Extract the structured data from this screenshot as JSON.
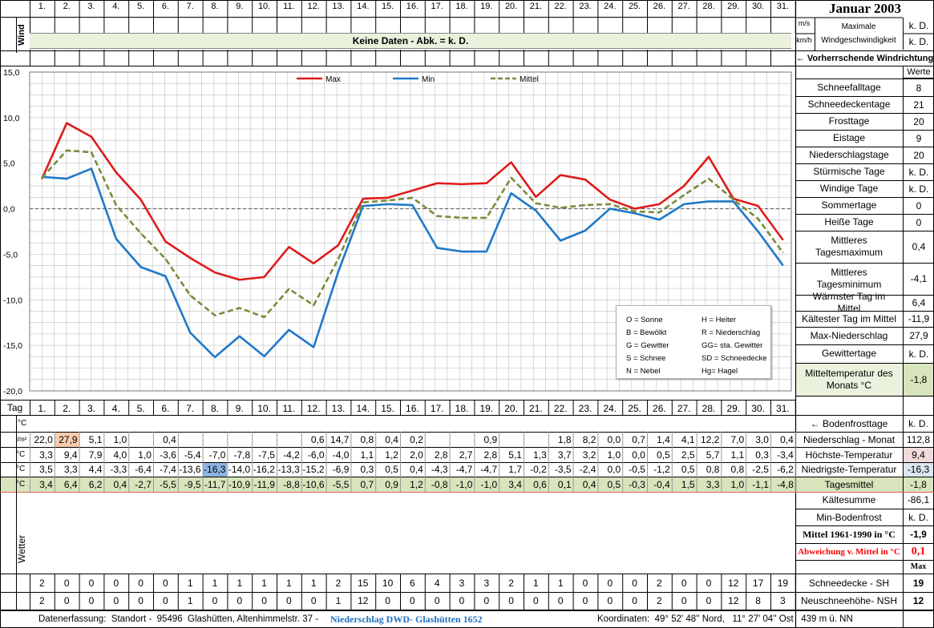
{
  "title": "Januar 2003",
  "days": [
    "1.",
    "2.",
    "3.",
    "4.",
    "5.",
    "6.",
    "7.",
    "8.",
    "9.",
    "10.",
    "11.",
    "12.",
    "13.",
    "14.",
    "15.",
    "16.",
    "17.",
    "18.",
    "19.",
    "20.",
    "21.",
    "22.",
    "23.",
    "24.",
    "25.",
    "26.",
    "27.",
    "28.",
    "29.",
    "30.",
    "31."
  ],
  "wind": {
    "label": "Wind",
    "no_data": "Keine Daten - Abk. = k. D.",
    "unit_ms": "m/s",
    "unit_kmh": "km/h",
    "max_label": "Maximale Windgeschwindigkeit",
    "value1": "k. D.",
    "value2": "k. D.",
    "direction_label": "← Vorherrschende Windrichtung"
  },
  "werte_header": "Werte",
  "stats": [
    {
      "label": "Schneefalltage",
      "value": "8"
    },
    {
      "label": "Schneedeckentage",
      "value": "21"
    },
    {
      "label": "Frosttage",
      "value": "20"
    },
    {
      "label": "Eistage",
      "value": "9"
    },
    {
      "label": "Niederschlagstage",
      "value": "20"
    },
    {
      "label": "Stürmische Tage",
      "value": "k. D."
    },
    {
      "label": "Windige Tage",
      "value": "k. D."
    },
    {
      "label": "Sommertage",
      "value": "0"
    },
    {
      "label": "Heiße Tage",
      "value": "0"
    },
    {
      "label": "Mittleres Tagesmaximum",
      "value": "0,4"
    },
    {
      "label": "Mittleres Tagesminimum",
      "value": "-4,1"
    },
    {
      "label": "Wärmster Tag im Mittel",
      "value": "6,4"
    },
    {
      "label": "Kältester Tag im Mittel",
      "value": "-11,9"
    },
    {
      "label": "Max-Niederschlag",
      "value": "27,9"
    },
    {
      "label": "Gewittertage",
      "value": "k. D."
    },
    {
      "label": "Mitteltemperatur des Monats °C",
      "value": "-1,8"
    }
  ],
  "legend_box": {
    "left": [
      "O = Sonne",
      "B = Bewölkt",
      "G = Gewitter",
      "S = Schnee",
      "N = Nebel"
    ],
    "right": [
      "H = Heiter",
      "R = Niederschlag",
      "GG= sta. Gewitter",
      "SD = Schneedecke",
      "Hg= Hagel"
    ]
  },
  "chart_data": {
    "type": "line",
    "x": [
      1,
      2,
      3,
      4,
      5,
      6,
      7,
      8,
      9,
      10,
      11,
      12,
      13,
      14,
      15,
      16,
      17,
      18,
      19,
      20,
      21,
      22,
      23,
      24,
      25,
      26,
      27,
      28,
      29,
      30,
      31
    ],
    "ylim": [
      -20,
      15
    ],
    "yticks": [
      "15,0",
      "10,0",
      "5,0",
      "0,0",
      "-5,0",
      "-10,0",
      "-15,0",
      "-20,0"
    ],
    "grid": true,
    "legend_position": "top",
    "series": [
      {
        "name": "Max",
        "color": "#e01b1b",
        "dash": false,
        "values": [
          3.3,
          9.4,
          7.9,
          4.0,
          1.0,
          -3.6,
          -5.4,
          -7.0,
          -7.8,
          -7.5,
          -4.2,
          -6.0,
          -4.0,
          1.1,
          1.2,
          2.0,
          2.8,
          2.7,
          2.8,
          5.1,
          1.3,
          3.7,
          3.2,
          1.0,
          0.0,
          0.5,
          2.5,
          5.7,
          1.1,
          0.3,
          -3.4
        ]
      },
      {
        "name": "Min",
        "color": "#1f78c8",
        "dash": false,
        "values": [
          3.5,
          3.3,
          4.4,
          -3.3,
          -6.4,
          -7.4,
          -13.6,
          -16.3,
          -14.0,
          -16.2,
          -13.3,
          -15.2,
          -6.9,
          0.3,
          0.5,
          0.4,
          -4.3,
          -4.7,
          -4.7,
          1.7,
          -0.2,
          -3.5,
          -2.4,
          0.0,
          -0.5,
          -1.2,
          0.5,
          0.8,
          0.8,
          -2.5,
          -6.2
        ]
      },
      {
        "name": "Mittel",
        "color": "#7a8b3a",
        "dash": true,
        "values": [
          3.4,
          6.4,
          6.2,
          0.4,
          -2.7,
          -5.5,
          -9.5,
          -11.7,
          -10.9,
          -11.9,
          -8.8,
          -10.6,
          -5.5,
          0.7,
          0.9,
          1.2,
          -0.8,
          -1.0,
          -1.0,
          3.4,
          0.6,
          0.1,
          0.4,
          0.5,
          -0.3,
          -0.4,
          1.5,
          3.3,
          1.0,
          -1.1,
          -4.8
        ]
      }
    ]
  },
  "tag_label": "Tag",
  "bodenfrost_label": "← Bodenfrosttage",
  "bodenfrost_value": "k. D.",
  "rows": [
    {
      "unit": "l/m²",
      "label": "Niederschlag - Monat",
      "total": "112,8",
      "values": [
        "22,0",
        "27,9",
        "5,1",
        "1,0",
        "",
        "0,4",
        "",
        "",
        "",
        "",
        "",
        "0,6",
        "14,7",
        "0,8",
        "0,4",
        "0,2",
        "",
        "",
        "0,9",
        "",
        "",
        "1,8",
        "8,2",
        "0,0",
        "0,7",
        "1,4",
        "4,1",
        "12,2",
        "7,0",
        "3,0",
        "0,4"
      ]
    },
    {
      "unit": "°C",
      "label": "Höchste-Temperatur",
      "total": "9,4",
      "values": [
        "3,3",
        "9,4",
        "7,9",
        "4,0",
        "1,0",
        "-3,6",
        "-5,4",
        "-7,0",
        "-7,8",
        "-7,5",
        "-4,2",
        "-6,0",
        "-4,0",
        "1,1",
        "1,2",
        "2,0",
        "2,8",
        "2,7",
        "2,8",
        "5,1",
        "1,3",
        "3,7",
        "3,2",
        "1,0",
        "0,0",
        "0,5",
        "2,5",
        "5,7",
        "1,1",
        "0,3",
        "-3,4"
      ]
    },
    {
      "unit": "°C",
      "label": "Niedrigste-Temperatur",
      "total": "-16,3",
      "values": [
        "3,5",
        "3,3",
        "4,4",
        "-3,3",
        "-6,4",
        "-7,4",
        "-13,6",
        "-16,3",
        "-14,0",
        "-16,2",
        "-13,3",
        "-15,2",
        "-6,9",
        "0,3",
        "0,5",
        "0,4",
        "-4,3",
        "-4,7",
        "-4,7",
        "1,7",
        "-0,2",
        "-3,5",
        "-2,4",
        "0,0",
        "-0,5",
        "-1,2",
        "0,5",
        "0,8",
        "0,8",
        "-2,5",
        "-6,2"
      ]
    },
    {
      "unit": "°C",
      "label": "Tagesmittel",
      "total": "-1,8",
      "values": [
        "3,4",
        "6,4",
        "6,2",
        "0,4",
        "-2,7",
        "-5,5",
        "-9,5",
        "-11,7",
        "-10,9",
        "-11,9",
        "-8,8",
        "-10,6",
        "-5,5",
        "0,7",
        "0,9",
        "1,2",
        "-0,8",
        "-1,0",
        "-1,0",
        "3,4",
        "0,6",
        "0,1",
        "0,4",
        "0,5",
        "-0,3",
        "-0,4",
        "1,5",
        "3,3",
        "1,0",
        "-1,1",
        "-4,8"
      ]
    }
  ],
  "extra_stats": [
    {
      "label": "Kältesumme",
      "value": "-86,1"
    },
    {
      "label": "Min-Bodenfrost",
      "value": "k. D."
    },
    {
      "label": "Mittel 1961-1990 in °C",
      "value": "-1,9"
    },
    {
      "label": "Abweichung v. Mittel in °C",
      "value": "0,1"
    }
  ],
  "max_label": "Max",
  "wetter_label": "Wetter",
  "snow_rows": [
    {
      "label": "Schneedecke -  SH",
      "max": "19",
      "values": [
        "2",
        "0",
        "0",
        "0",
        "0",
        "0",
        "1",
        "1",
        "1",
        "1",
        "1",
        "1",
        "2",
        "15",
        "10",
        "6",
        "4",
        "3",
        "3",
        "2",
        "1",
        "1",
        "0",
        "0",
        "0",
        "2",
        "0",
        "0",
        "12",
        "17",
        "19"
      ]
    },
    {
      "label": "Neuschneehöhe- NSH",
      "max": "12",
      "values": [
        "2",
        "0",
        "0",
        "0",
        "0",
        "0",
        "1",
        "0",
        "0",
        "0",
        "0",
        "0",
        "1",
        "12",
        "0",
        "0",
        "0",
        "0",
        "0",
        "0",
        "0",
        "0",
        "0",
        "0",
        "0",
        "2",
        "0",
        "0",
        "12",
        "8",
        "3"
      ]
    }
  ],
  "footer": {
    "prefix": "Datenerfassung:  Standort -  95496  Glashütten, Altenhimmelstr. 37 - ",
    "highlight": "Niederschlag DWD- Glashütten 1652",
    "coords": "Koordinaten:  49° 52' 48'' Nord,   11° 27' 04'' Ost   439 m ü. NN"
  },
  "colors": {
    "header_band": "#eaf1dd",
    "tagesmittel_band": "#d8e4bc",
    "highlight_orange": "#f8cbad",
    "highlight_blue": "#8db4e2",
    "highlight_pink": "#f2dcdb",
    "highlight_lightblue": "#dce6f1",
    "red_text": "#ff0000",
    "footer_blue": "#1f6fbf"
  }
}
